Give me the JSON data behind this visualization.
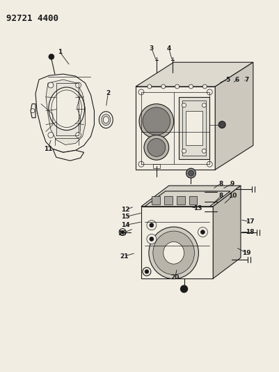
{
  "title": "92721 4400",
  "bg_color": "#f2ede3",
  "line_color": "#1a1a1a",
  "text_color": "#1a1a1a",
  "fig_width": 4.02,
  "fig_height": 5.33,
  "dpi": 100
}
